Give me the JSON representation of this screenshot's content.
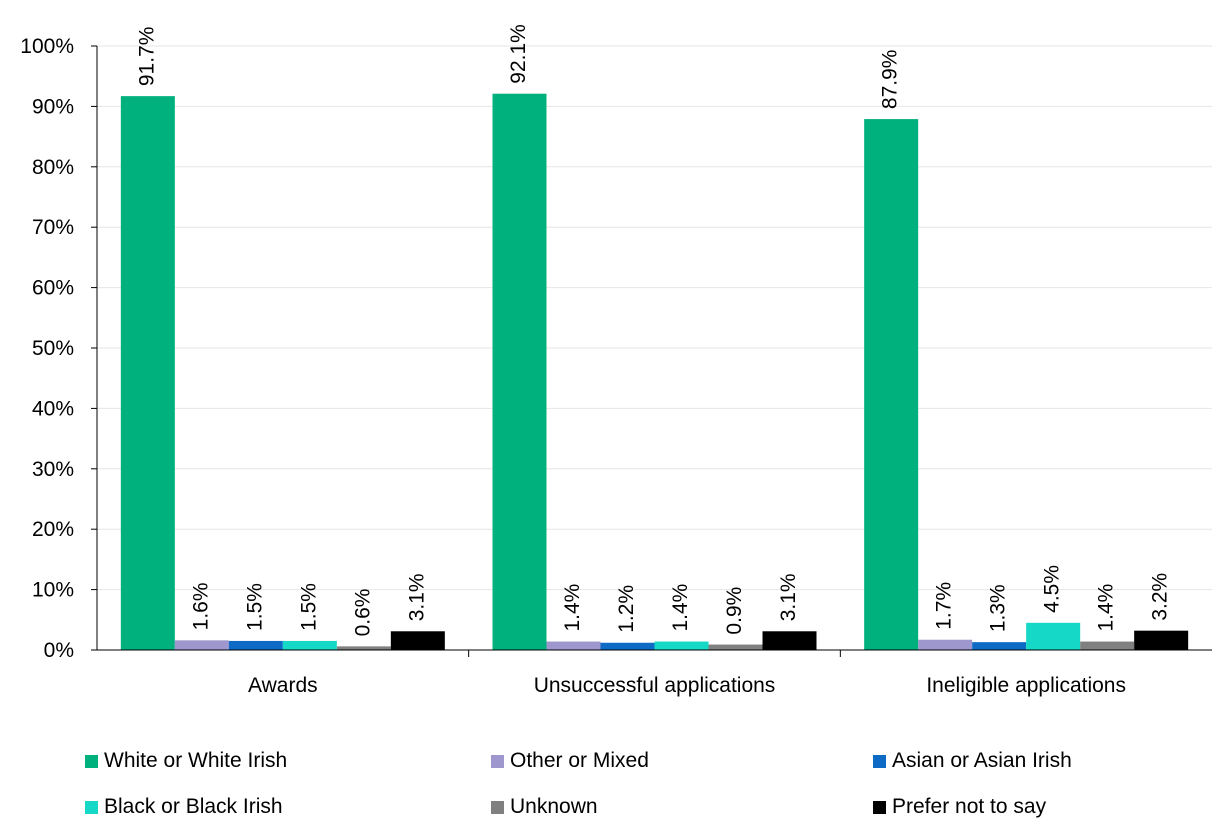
{
  "chart_data": {
    "type": "bar",
    "categories": [
      "Awards",
      "Unsuccessful applications",
      "Ineligible applications"
    ],
    "series": [
      {
        "name": "White or White Irish",
        "color": "#00b07d",
        "values": [
          91.7,
          92.1,
          87.9
        ],
        "labels": [
          "91.7%",
          "92.1%",
          "87.9%"
        ]
      },
      {
        "name": "Other or Mixed",
        "color": "#9d97ce",
        "values": [
          1.6,
          1.4,
          1.7
        ],
        "labels": [
          "1.6%",
          "1.4%",
          "1.7%"
        ]
      },
      {
        "name": "Asian or Asian Irish",
        "color": "#0d6bc6",
        "values": [
          1.5,
          1.2,
          1.3
        ],
        "labels": [
          "1.5%",
          "1.2%",
          "1.3%"
        ]
      },
      {
        "name": "Black or Black Irish",
        "color": "#16d8c6",
        "values": [
          1.5,
          1.4,
          4.5
        ],
        "labels": [
          "1.5%",
          "1.4%",
          "4.5%"
        ]
      },
      {
        "name": "Unknown",
        "color": "#808080",
        "values": [
          0.6,
          0.9,
          1.4
        ],
        "labels": [
          "0.6%",
          "0.9%",
          "1.4%"
        ]
      },
      {
        "name": "Prefer not to say",
        "color": "#000000",
        "values": [
          3.1,
          3.1,
          3.2
        ],
        "labels": [
          "3.1%",
          "3.1%",
          "3.2%"
        ]
      }
    ],
    "ylim": [
      0,
      100
    ],
    "yticks": [
      "0%",
      "10%",
      "20%",
      "30%",
      "40%",
      "50%",
      "60%",
      "70%",
      "80%",
      "90%",
      "100%"
    ],
    "grid": true,
    "legend_position": "bottom"
  }
}
